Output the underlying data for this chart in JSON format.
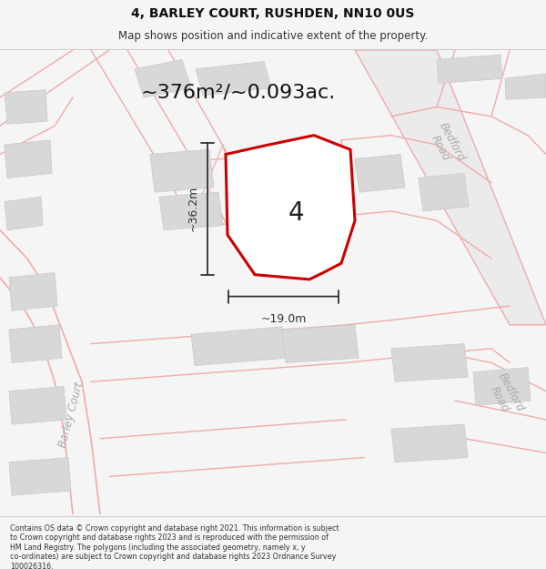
{
  "title": "4, BARLEY COURT, RUSHDEN, NN10 0US",
  "subtitle": "Map shows position and indicative extent of the property.",
  "area_text": "~376m²/~0.093ac.",
  "label_number": "4",
  "dim_horizontal": "~19.0m",
  "dim_vertical": "~36.2m",
  "footer_lines": [
    "Contains OS data © Crown copyright and database right 2021. This information is subject",
    "to Crown copyright and database rights 2023 and is reproduced with the permission of",
    "HM Land Registry. The polygons (including the associated geometry, namely x, y",
    "co-ordinates) are subject to Crown copyright and database rights 2023 Ordnance Survey",
    "100026316."
  ],
  "bg_color": "#f5f5f5",
  "map_bg": "#ffffff",
  "property_fill": "#ffffff",
  "property_edge": "#cc0000",
  "road_color": "#f2aaaa",
  "building_color": "#d8d8d8",
  "building_edge": "#cccccc",
  "road_fill": "#f5f5f5",
  "bedford_fill": "#ebebeb",
  "dim_color": "#333333",
  "text_color": "#333333",
  "road_label_color": "#aaaaaa",
  "title_fontsize": 10,
  "subtitle_fontsize": 8.5,
  "area_fontsize": 16,
  "number_fontsize": 20,
  "dim_fontsize": 9,
  "road_label_fontsize": 8.5,
  "footer_fontsize": 5.8
}
